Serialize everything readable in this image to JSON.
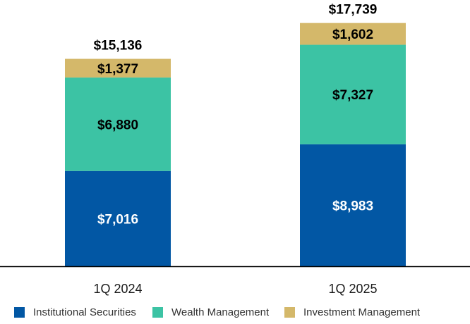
{
  "chart_data": {
    "type": "bar",
    "stacked": true,
    "categories": [
      "1Q 2024",
      "1Q 2025"
    ],
    "series": [
      {
        "name": "Institutional Securities",
        "color": "#0257a4",
        "label_color": "#ffffff",
        "values": [
          7016,
          8983
        ],
        "labels": [
          "$7,016",
          "$8,983"
        ]
      },
      {
        "name": "Wealth Management",
        "color": "#3cc3a4",
        "label_color": "#000000",
        "values": [
          6880,
          7327
        ],
        "labels": [
          "$6,880",
          "$7,327"
        ]
      },
      {
        "name": "Investment Management",
        "color": "#d4b86a",
        "label_color": "#000000",
        "values": [
          1377,
          1602
        ],
        "labels": [
          "$1,377",
          "$1,602"
        ]
      }
    ],
    "totals": [
      15136,
      17739
    ],
    "total_labels": [
      "$15,136",
      "$17,739"
    ],
    "ylim": [
      0,
      18000
    ],
    "grid": false,
    "legend_position": "bottom",
    "title": "",
    "xlabel": "",
    "ylabel": ""
  }
}
